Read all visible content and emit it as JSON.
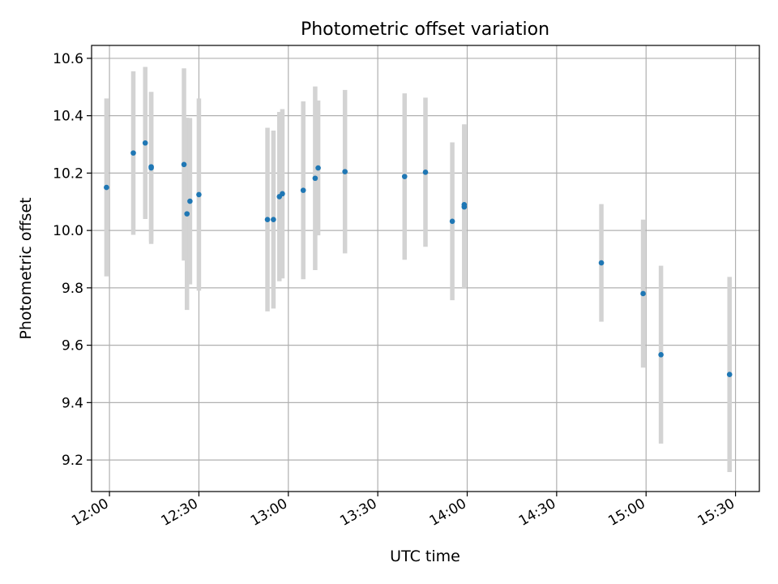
{
  "chart_data": {
    "type": "scatter",
    "title": "Photometric offset variation",
    "xlabel": "UTC time",
    "ylabel": "Photometric offset",
    "grid": true,
    "x_ticks": [
      "12:00",
      "12:30",
      "13:00",
      "13:30",
      "14:00",
      "14:30",
      "15:00",
      "15:30"
    ],
    "y_ticks": [
      "9.2",
      "9.4",
      "9.6",
      "9.8",
      "10.0",
      "10.2",
      "10.4",
      "10.6"
    ],
    "xlim": [
      "11:54",
      "15:38"
    ],
    "ylim": [
      9.09,
      10.645
    ],
    "colors": {
      "points": "#1f77b4",
      "errorbars": "#d3d3d3",
      "grid": "#b0b0b0"
    },
    "points": [
      {
        "time": "11:59",
        "y": 10.15,
        "err": 0.31
      },
      {
        "time": "12:08",
        "y": 10.27,
        "err": 0.285
      },
      {
        "time": "12:12",
        "y": 10.305,
        "err": 0.265
      },
      {
        "time": "12:14",
        "y": 10.218,
        "err": 0.265
      },
      {
        "time": "12:14",
        "y": 10.222,
        "err": 0.26
      },
      {
        "time": "12:25",
        "y": 10.23,
        "err": 0.335
      },
      {
        "time": "12:26",
        "y": 10.058,
        "err": 0.335
      },
      {
        "time": "12:27",
        "y": 10.102,
        "err": 0.29
      },
      {
        "time": "12:30",
        "y": 10.125,
        "err": 0.335
      },
      {
        "time": "12:53",
        "y": 10.038,
        "err": 0.32
      },
      {
        "time": "12:55",
        "y": 10.038,
        "err": 0.31
      },
      {
        "time": "12:57",
        "y": 10.118,
        "err": 0.295
      },
      {
        "time": "12:58",
        "y": 10.128,
        "err": 0.295
      },
      {
        "time": "13:05",
        "y": 10.14,
        "err": 0.31
      },
      {
        "time": "13:09",
        "y": 10.182,
        "err": 0.32
      },
      {
        "time": "13:10",
        "y": 10.218,
        "err": 0.235
      },
      {
        "time": "13:19",
        "y": 10.205,
        "err": 0.285
      },
      {
        "time": "13:39",
        "y": 10.188,
        "err": 0.29
      },
      {
        "time": "13:46",
        "y": 10.203,
        "err": 0.26
      },
      {
        "time": "13:55",
        "y": 10.032,
        "err": 0.275
      },
      {
        "time": "13:59",
        "y": 10.082,
        "err": 0.285
      },
      {
        "time": "13:59",
        "y": 10.09,
        "err": 0.28
      },
      {
        "time": "14:45",
        "y": 9.887,
        "err": 0.205
      },
      {
        "time": "14:59",
        "y": 9.78,
        "err": 0.258
      },
      {
        "time": "15:05",
        "y": 9.567,
        "err": 0.31
      },
      {
        "time": "15:28",
        "y": 9.498,
        "err": 0.34
      }
    ]
  }
}
